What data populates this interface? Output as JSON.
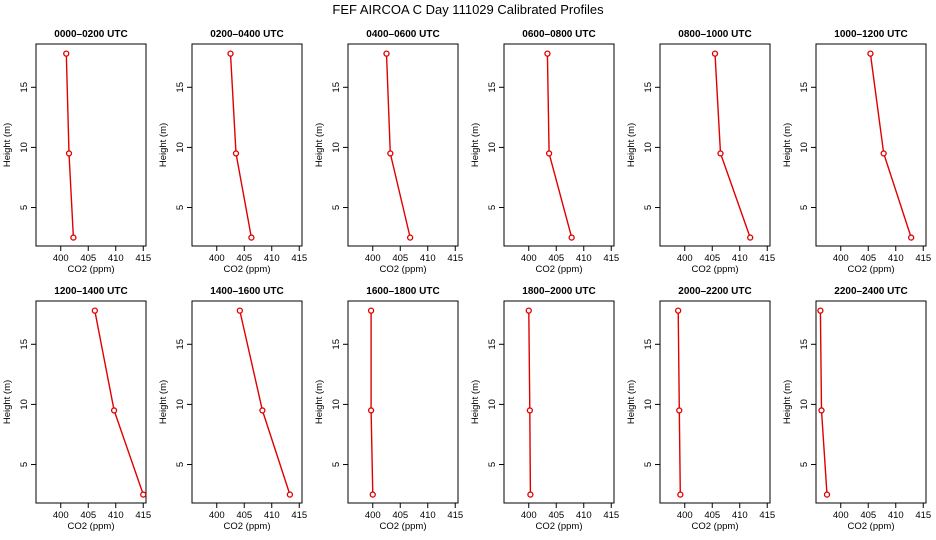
{
  "title": "FEF AIRCOA C  Day 111029  Calibrated Profiles",
  "colors": {
    "profile": "#e00000",
    "axis": "#000000",
    "background": "#ffffff"
  },
  "chart_data": [
    {
      "type": "line",
      "title": "0000–0200 UTC",
      "xlabel": "CO2 (ppm)",
      "ylabel": "Height (m)",
      "xlim": [
        395.5,
        415.5
      ],
      "ylim": [
        1.8,
        18.6
      ],
      "xticks": [
        400,
        405,
        410,
        415
      ],
      "yticks": [
        5,
        10,
        15
      ],
      "grid": false,
      "series": [
        {
          "points": [
            {
              "x": 401.0,
              "y": 17.8
            },
            {
              "x": 401.5,
              "y": 9.5
            },
            {
              "x": 402.3,
              "y": 2.5
            }
          ]
        }
      ]
    },
    {
      "type": "line",
      "title": "0200–0400 UTC",
      "xlabel": "CO2 (ppm)",
      "ylabel": "Height (m)",
      "xlim": [
        395.5,
        415.5
      ],
      "ylim": [
        1.8,
        18.6
      ],
      "xticks": [
        400,
        405,
        410,
        415
      ],
      "yticks": [
        5,
        10,
        15
      ],
      "grid": false,
      "series": [
        {
          "points": [
            {
              "x": 402.5,
              "y": 17.8
            },
            {
              "x": 403.5,
              "y": 9.5
            },
            {
              "x": 406.3,
              "y": 2.5
            }
          ]
        }
      ]
    },
    {
      "type": "line",
      "title": "0400–0600 UTC",
      "xlabel": "CO2 (ppm)",
      "ylabel": "Height (m)",
      "xlim": [
        395.5,
        415.5
      ],
      "ylim": [
        1.8,
        18.6
      ],
      "xticks": [
        400,
        405,
        410,
        415
      ],
      "yticks": [
        5,
        10,
        15
      ],
      "grid": false,
      "series": [
        {
          "points": [
            {
              "x": 402.5,
              "y": 17.8
            },
            {
              "x": 403.2,
              "y": 9.5
            },
            {
              "x": 406.8,
              "y": 2.5
            }
          ]
        }
      ]
    },
    {
      "type": "line",
      "title": "0600–0800 UTC",
      "xlabel": "CO2 (ppm)",
      "ylabel": "Height (m)",
      "xlim": [
        395.5,
        415.5
      ],
      "ylim": [
        1.8,
        18.6
      ],
      "xticks": [
        400,
        405,
        410,
        415
      ],
      "yticks": [
        5,
        10,
        15
      ],
      "grid": false,
      "series": [
        {
          "points": [
            {
              "x": 403.4,
              "y": 17.8
            },
            {
              "x": 403.7,
              "y": 9.5
            },
            {
              "x": 407.8,
              "y": 2.5
            }
          ]
        }
      ]
    },
    {
      "type": "line",
      "title": "0800–1000 UTC",
      "xlabel": "CO2 (ppm)",
      "ylabel": "Height (m)",
      "xlim": [
        395.5,
        415.5
      ],
      "ylim": [
        1.8,
        18.6
      ],
      "xticks": [
        400,
        405,
        410,
        415
      ],
      "yticks": [
        5,
        10,
        15
      ],
      "grid": false,
      "series": [
        {
          "points": [
            {
              "x": 405.5,
              "y": 17.8
            },
            {
              "x": 406.5,
              "y": 9.5
            },
            {
              "x": 411.9,
              "y": 2.5
            }
          ]
        }
      ]
    },
    {
      "type": "line",
      "title": "1000–1200 UTC",
      "xlabel": "CO2 (ppm)",
      "ylabel": "Height (m)",
      "xlim": [
        395.5,
        415.5
      ],
      "ylim": [
        1.8,
        18.6
      ],
      "xticks": [
        400,
        405,
        410,
        415
      ],
      "yticks": [
        5,
        10,
        15
      ],
      "grid": false,
      "series": [
        {
          "points": [
            {
              "x": 405.4,
              "y": 17.8
            },
            {
              "x": 407.8,
              "y": 9.5
            },
            {
              "x": 412.8,
              "y": 2.5
            }
          ]
        }
      ]
    },
    {
      "type": "line",
      "title": "1200–1400 UTC",
      "xlabel": "CO2 (ppm)",
      "ylabel": "Height (m)",
      "xlim": [
        395.5,
        415.5
      ],
      "ylim": [
        1.8,
        18.6
      ],
      "xticks": [
        400,
        405,
        410,
        415
      ],
      "yticks": [
        5,
        10,
        15
      ],
      "grid": false,
      "series": [
        {
          "points": [
            {
              "x": 406.2,
              "y": 17.8
            },
            {
              "x": 409.7,
              "y": 9.5
            },
            {
              "x": 415.0,
              "y": 2.5
            }
          ]
        }
      ]
    },
    {
      "type": "line",
      "title": "1400–1600 UTC",
      "xlabel": "CO2 (ppm)",
      "ylabel": "Height (m)",
      "xlim": [
        395.5,
        415.5
      ],
      "ylim": [
        1.8,
        18.6
      ],
      "xticks": [
        400,
        405,
        410,
        415
      ],
      "yticks": [
        5,
        10,
        15
      ],
      "grid": false,
      "series": [
        {
          "points": [
            {
              "x": 404.2,
              "y": 17.8
            },
            {
              "x": 408.3,
              "y": 9.5
            },
            {
              "x": 413.3,
              "y": 2.5
            }
          ]
        }
      ]
    },
    {
      "type": "line",
      "title": "1600–1800 UTC",
      "xlabel": "CO2 (ppm)",
      "ylabel": "Height (m)",
      "xlim": [
        395.5,
        415.5
      ],
      "ylim": [
        1.8,
        18.6
      ],
      "xticks": [
        400,
        405,
        410,
        415
      ],
      "yticks": [
        5,
        10,
        15
      ],
      "grid": false,
      "series": [
        {
          "points": [
            {
              "x": 399.7,
              "y": 17.8
            },
            {
              "x": 399.7,
              "y": 9.5
            },
            {
              "x": 400.0,
              "y": 2.5
            }
          ]
        }
      ]
    },
    {
      "type": "line",
      "title": "1800–2000 UTC",
      "xlabel": "CO2 (ppm)",
      "ylabel": "Height (m)",
      "xlim": [
        395.5,
        415.5
      ],
      "ylim": [
        1.8,
        18.6
      ],
      "xticks": [
        400,
        405,
        410,
        415
      ],
      "yticks": [
        5,
        10,
        15
      ],
      "grid": false,
      "series": [
        {
          "points": [
            {
              "x": 400.0,
              "y": 17.8
            },
            {
              "x": 400.2,
              "y": 9.5
            },
            {
              "x": 400.3,
              "y": 2.5
            }
          ]
        }
      ]
    },
    {
      "type": "line",
      "title": "2000–2200 UTC",
      "xlabel": "CO2 (ppm)",
      "ylabel": "Height (m)",
      "xlim": [
        395.5,
        415.5
      ],
      "ylim": [
        1.8,
        18.6
      ],
      "xticks": [
        400,
        405,
        410,
        415
      ],
      "yticks": [
        5,
        10,
        15
      ],
      "grid": false,
      "series": [
        {
          "points": [
            {
              "x": 398.8,
              "y": 17.8
            },
            {
              "x": 399.0,
              "y": 9.5
            },
            {
              "x": 399.2,
              "y": 2.5
            }
          ]
        }
      ]
    },
    {
      "type": "line",
      "title": "2200–2400 UTC",
      "xlabel": "CO2 (ppm)",
      "ylabel": "Height (m)",
      "xlim": [
        395.5,
        415.5
      ],
      "ylim": [
        1.8,
        18.6
      ],
      "xticks": [
        400,
        405,
        410,
        415
      ],
      "yticks": [
        5,
        10,
        15
      ],
      "grid": false,
      "series": [
        {
          "points": [
            {
              "x": 396.3,
              "y": 17.8
            },
            {
              "x": 396.5,
              "y": 9.5
            },
            {
              "x": 397.5,
              "y": 2.5
            }
          ]
        }
      ]
    }
  ]
}
